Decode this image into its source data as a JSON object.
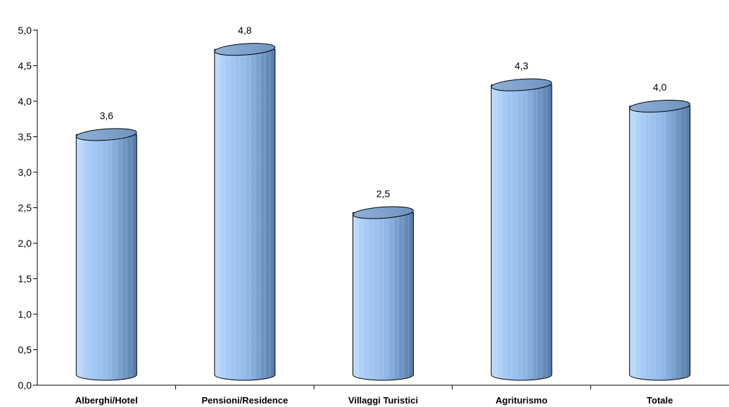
{
  "chart_data": {
    "type": "bar",
    "style": "3d-cylinder",
    "categories": [
      "Alberghi/Hotel",
      "Pensioni/Residence",
      "Villaggi Turistici",
      "Agriturismo",
      "Totale"
    ],
    "values": [
      3.6,
      4.8,
      2.5,
      4.3,
      4.0
    ],
    "data_labels": [
      "3,6",
      "4,8",
      "2,5",
      "4,3",
      "4,0"
    ],
    "ylim": [
      0,
      5
    ],
    "yticks": [
      0,
      0.5,
      1,
      1.5,
      2,
      2.5,
      3,
      3.5,
      4,
      4.5,
      5
    ],
    "ytick_labels": [
      "0,0",
      "0,5",
      "1,0",
      "1,5",
      "2,0",
      "2,5",
      "3,0",
      "3,5",
      "4,0",
      "4,5",
      "5,0"
    ],
    "grid": false,
    "legend": "none",
    "bar_color": "#9ec4f0",
    "bar_edge_color": "#000000"
  }
}
